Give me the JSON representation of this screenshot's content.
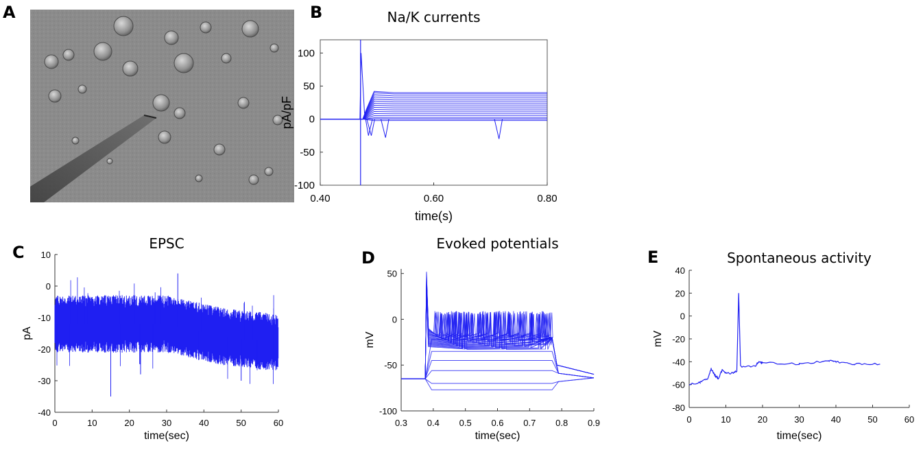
{
  "panel_labels": {
    "a": "A",
    "b": "B",
    "c": "C",
    "d": "D",
    "e": "E"
  },
  "colors": {
    "trace": "#1f1ff2",
    "axis": "#555555"
  },
  "chart_data": [
    {
      "panel": "B",
      "type": "line",
      "title": "Na/K currents",
      "xlabel": "time(s)",
      "ylabel": "pA/pF",
      "xlim": [
        0.4,
        0.8
      ],
      "ylim": [
        -100,
        120
      ],
      "xticks": [
        "0.40",
        "0.60",
        "0.80"
      ],
      "yticks": [
        "-100",
        "-50",
        "0",
        "50",
        "100"
      ],
      "stimulus_onset": 0.475,
      "steady_state_levels": [
        -2,
        0,
        2,
        5,
        8,
        11,
        14,
        17,
        20,
        23,
        26,
        29,
        32,
        35,
        38,
        40
      ],
      "inward_peaks": [
        {
          "x": 0.47,
          "y": 100
        },
        {
          "x": 0.49,
          "y": -25
        },
        {
          "x": 0.515,
          "y": -28
        },
        {
          "x": 0.715,
          "y": -30
        }
      ]
    },
    {
      "panel": "C",
      "type": "line",
      "title": "EPSC",
      "xlabel": "time(sec)",
      "ylabel": "pA",
      "xlim": [
        0,
        60
      ],
      "ylim": [
        -40,
        10
      ],
      "xticks": [
        "0",
        "10",
        "20",
        "30",
        "40",
        "50",
        "60"
      ],
      "yticks": [
        "-40",
        "-30",
        "-20",
        "-10",
        "0",
        "10"
      ],
      "mean_trend": [
        {
          "x": 0,
          "y": -12
        },
        {
          "x": 30,
          "y": -12
        },
        {
          "x": 45,
          "y": -16
        },
        {
          "x": 60,
          "y": -18
        }
      ],
      "noise_band": 7,
      "spikes": [
        {
          "x": 15,
          "y": -35
        },
        {
          "x": 33,
          "y": 4
        },
        {
          "x": 23,
          "y": -28
        },
        {
          "x": 50,
          "y": -30
        }
      ]
    },
    {
      "panel": "D",
      "type": "line",
      "title": "Evoked potentials",
      "xlabel": "time(sec)",
      "ylabel": "mV",
      "xlim": [
        0.3,
        0.9
      ],
      "ylim": [
        -100,
        55
      ],
      "xticks": [
        "0.3",
        "0.4",
        "0.5",
        "0.6",
        "0.7",
        "0.8",
        "0.9"
      ],
      "yticks": [
        "-100",
        "-50",
        "0",
        "50"
      ],
      "baseline": -65,
      "step_on": 0.375,
      "step_off": 0.77,
      "subthreshold_levels": [
        -77,
        -70,
        -56,
        -45,
        -35,
        -22
      ],
      "spiking_peak_max": 52,
      "plateau": 5
    },
    {
      "panel": "E",
      "type": "line",
      "title": "Spontaneous activity",
      "xlabel": "time(sec)",
      "ylabel": "mV",
      "xlim": [
        0,
        60
      ],
      "ylim": [
        -80,
        40
      ],
      "xticks": [
        "0",
        "10",
        "20",
        "30",
        "40",
        "50",
        "60"
      ],
      "yticks": [
        "-80",
        "-60",
        "-40",
        "-20",
        "0",
        "20",
        "40"
      ],
      "series": [
        {
          "x": [
            0,
            3,
            5,
            6,
            7,
            8,
            9,
            10,
            12,
            13,
            13.5,
            14,
            18,
            19,
            20,
            30,
            38,
            40,
            45,
            52
          ],
          "y": [
            -60,
            -58,
            -55,
            -46,
            -52,
            -55,
            -47,
            -50,
            -50,
            -48,
            20,
            -44,
            -44,
            -40,
            -41,
            -42,
            -39,
            -40,
            -42,
            -42
          ]
        }
      ]
    }
  ]
}
